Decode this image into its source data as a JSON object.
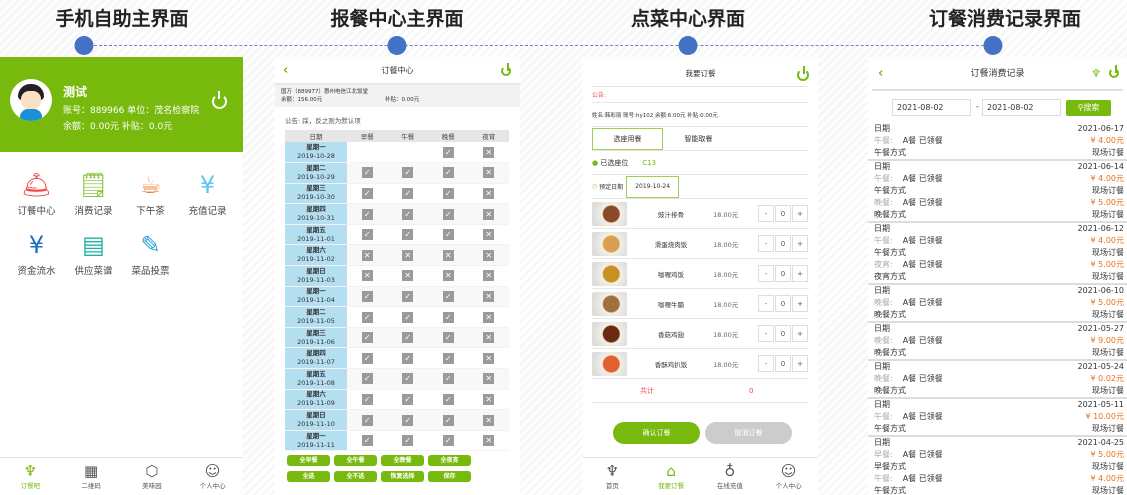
{
  "titles": [
    "手机自助主界面",
    "报餐中心主界面",
    "点菜中心界面",
    "订餐消费记录界面"
  ],
  "s1": {
    "name": "测试",
    "line1": "账号：889966  单位：茂名检察院",
    "line2": "余额：0.00元  补贴：0.0元",
    "items": [
      {
        "label": "订餐中心",
        "icon": "food-cover-icon",
        "glyph": "🛎",
        "color": "#f04848"
      },
      {
        "label": "消费记录",
        "icon": "record-search-icon",
        "glyph": "🗒",
        "color": "#7cbf27"
      },
      {
        "label": "下午茶",
        "icon": "tea-cup-icon",
        "glyph": "☕",
        "color": "#f08030"
      },
      {
        "label": "充值记录",
        "icon": "recharge-clipboard-icon",
        "glyph": "¥",
        "color": "#5bc6f0"
      },
      {
        "label": "资金流水",
        "icon": "money-flow-icon",
        "glyph": "¥",
        "color": "#1a6ec0"
      },
      {
        "label": "供应菜谱",
        "icon": "menu-book-icon",
        "glyph": "▤",
        "color": "#20b0a0"
      },
      {
        "label": "菜品投票",
        "icon": "vote-box-icon",
        "glyph": "✎",
        "color": "#2aa0e0"
      }
    ],
    "nav": [
      {
        "label": "订餐吧",
        "icon": "lamp-icon",
        "glyph": "♆",
        "active": true
      },
      {
        "label": "二维码",
        "icon": "qr-code-icon",
        "glyph": "▦"
      },
      {
        "label": "美味园",
        "icon": "box-icon",
        "glyph": "⬡"
      },
      {
        "label": "个人中心",
        "icon": "user-icon",
        "glyph": "☺"
      }
    ]
  },
  "s2": {
    "title": "订餐中心",
    "info1": "国万（889977）惠州电信江北饭堂",
    "balance": "余额：156.00元",
    "subsidy": "补贴：0.00元",
    "notice": "公告: 踩，反之则为默认项",
    "headers": [
      "日期",
      "早餐",
      "午餐",
      "晚餐",
      "夜宵"
    ],
    "rows": [
      [
        "星期一",
        "2019-10-28",
        "",
        "",
        "v",
        "x"
      ],
      [
        "星期二",
        "2019-10-29",
        "v",
        "v",
        "v",
        "x"
      ],
      [
        "星期三",
        "2019-10-30",
        "v",
        "v",
        "v",
        "x"
      ],
      [
        "星期四",
        "2019-10-31",
        "v",
        "v",
        "v",
        "x"
      ],
      [
        "星期五",
        "2019-11-01",
        "v",
        "v",
        "v",
        "x"
      ],
      [
        "星期六",
        "2019-11-02",
        "x",
        "x",
        "x",
        "x"
      ],
      [
        "星期日",
        "2019-11-03",
        "x",
        "x",
        "x",
        "x"
      ],
      [
        "星期一",
        "2019-11-04",
        "v",
        "v",
        "v",
        "x"
      ],
      [
        "星期二",
        "2019-11-05",
        "v",
        "v",
        "v",
        "x"
      ],
      [
        "星期三",
        "2019-11-06",
        "v",
        "v",
        "v",
        "x"
      ],
      [
        "星期四",
        "2019-11-07",
        "v",
        "v",
        "v",
        "x"
      ],
      [
        "星期五",
        "2019-11-08",
        "v",
        "v",
        "v",
        "x"
      ],
      [
        "星期六",
        "2019-11-09",
        "v",
        "v",
        "v",
        "x"
      ],
      [
        "星期日",
        "2019-11-10",
        "v",
        "v",
        "v",
        "x"
      ],
      [
        "星期一",
        "2019-11-11",
        "v",
        "v",
        "v",
        "x"
      ]
    ],
    "buttons": [
      "全早餐",
      "全午餐",
      "全晚餐",
      "全夜宵",
      "全选",
      "全不选",
      "恢复选择",
      "保存"
    ]
  },
  "s3": {
    "title": "我要订餐",
    "notice": "公告:",
    "info": "姓名:韩彩丽  账号:hy102  余额:6.00元 补贴:0.00元",
    "tabs": [
      "选座用餐",
      "智能取餐"
    ],
    "seat_label": "已选座位",
    "seat": "C13",
    "date_label": "预定日期",
    "date": "2019-10-24",
    "foods": [
      {
        "name": "豉汁排骨",
        "price": "18.00元",
        "qty": "0",
        "color": "#8a4a2a"
      },
      {
        "name": "滑蛋烧肉饭",
        "price": "18.00元",
        "qty": "0",
        "color": "#d8a050"
      },
      {
        "name": "咖喱鸡饭",
        "price": "18.00元",
        "qty": "0",
        "color": "#c89020"
      },
      {
        "name": "咖喱牛腩",
        "price": "18.00元",
        "qty": "0",
        "color": "#a07040"
      },
      {
        "name": "香菇鸡翅",
        "price": "18.00元",
        "qty": "0",
        "color": "#6a2a10"
      },
      {
        "name": "香酥鸡扒饭",
        "price": "18.00元",
        "qty": "0",
        "color": "#e06030"
      }
    ],
    "total_label": "共计",
    "total": "0",
    "confirm": "确认订餐",
    "cancel": "取消订餐",
    "nav": [
      {
        "label": "首页",
        "icon": "lamp-icon",
        "glyph": "♆"
      },
      {
        "label": "我要订餐",
        "icon": "food-cover-icon",
        "glyph": "⌂",
        "active": true
      },
      {
        "label": "在线充值",
        "icon": "money-bag-icon",
        "glyph": "♁"
      },
      {
        "label": "个人中心",
        "icon": "user-icon",
        "glyph": "☺"
      }
    ]
  },
  "s4": {
    "title": "订餐消费记录",
    "from": "2021-08-02",
    "to": "2021-08-02",
    "search": "搜索",
    "date_label": "日期",
    "meal_text": "A餐 已领餐",
    "records": [
      {
        "date": "2021-06-17",
        "meals": [
          {
            "meal": "午餐:",
            "amount": "¥ 4.00元",
            "mode_label": "午餐方式",
            "mode": "现场订餐"
          }
        ]
      },
      {
        "date": "2021-06-14",
        "meals": [
          {
            "meal": "午餐:",
            "amount": "¥ 4.00元",
            "mode_label": "午餐方式",
            "mode": "现场订餐"
          },
          {
            "meal": "晚餐:",
            "amount": "¥ 5.00元",
            "mode_label": "晚餐方式",
            "mode": "现场订餐"
          }
        ]
      },
      {
        "date": "2021-06-12",
        "meals": [
          {
            "meal": "午餐:",
            "amount": "¥ 4.00元",
            "mode_label": "午餐方式",
            "mode": "现场订餐"
          },
          {
            "meal": "夜宵:",
            "amount": "¥ 5.00元",
            "mode_label": "夜宵方式",
            "mode": "现场订餐"
          }
        ]
      },
      {
        "date": "2021-06-10",
        "meals": [
          {
            "meal": "晚餐:",
            "amount": "¥ 5.00元",
            "mode_label": "晚餐方式",
            "mode": "现场订餐"
          }
        ]
      },
      {
        "date": "2021-05-27",
        "meals": [
          {
            "meal": "晚餐:",
            "amount": "¥ 9.00元",
            "mode_label": "晚餐方式",
            "mode": "现场订餐"
          }
        ]
      },
      {
        "date": "2021-05-24",
        "meals": [
          {
            "meal": "晚餐:",
            "amount": "¥ 0.02元",
            "mode_label": "晚餐方式",
            "mode": "现场订餐"
          }
        ]
      },
      {
        "date": "2021-05-11",
        "meals": [
          {
            "meal": "午餐:",
            "amount": "¥ 10.00元",
            "mode_label": "午餐方式",
            "mode": "现场订餐"
          }
        ]
      },
      {
        "date": "2021-04-25",
        "meals": [
          {
            "meal": "早餐:",
            "amount": "¥ 5.00元",
            "mode_label": "早餐方式",
            "mode": "现场订餐"
          },
          {
            "meal": "午餐:",
            "amount": "¥ 4.00元",
            "mode_label": "午餐方式",
            "mode": "现场订餐"
          }
        ]
      }
    ]
  },
  "colors": {
    "green": "#77b90c",
    "dot": "#4472c4",
    "date_cell": "#b4dff0",
    "amount": "#e8701a",
    "notice": "#f04848"
  }
}
